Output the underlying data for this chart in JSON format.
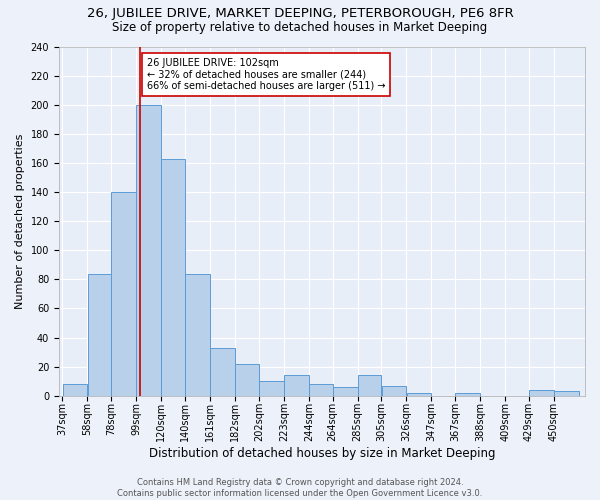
{
  "title": "26, JUBILEE DRIVE, MARKET DEEPING, PETERBOROUGH, PE6 8FR",
  "subtitle": "Size of property relative to detached houses in Market Deeping",
  "xlabel": "Distribution of detached houses by size in Market Deeping",
  "ylabel": "Number of detached properties",
  "bar_labels": [
    "37sqm",
    "58sqm",
    "78sqm",
    "99sqm",
    "120sqm",
    "140sqm",
    "161sqm",
    "182sqm",
    "202sqm",
    "223sqm",
    "244sqm",
    "264sqm",
    "285sqm",
    "305sqm",
    "326sqm",
    "347sqm",
    "367sqm",
    "388sqm",
    "409sqm",
    "429sqm",
    "450sqm"
  ],
  "bar_heights": [
    8,
    84,
    140,
    200,
    163,
    84,
    33,
    22,
    10,
    14,
    8,
    6,
    14,
    7,
    2,
    0,
    2,
    0,
    0,
    4,
    3
  ],
  "bar_edges": [
    37,
    58,
    78,
    99,
    120,
    140,
    161,
    182,
    202,
    223,
    244,
    264,
    285,
    305,
    326,
    347,
    367,
    388,
    409,
    429,
    450,
    471
  ],
  "bar_color": "#b8d0ea",
  "bar_edge_color": "#5b9bd5",
  "red_line_x": 102,
  "annotation_text": "26 JUBILEE DRIVE: 102sqm\n← 32% of detached houses are smaller (244)\n66% of semi-detached houses are larger (511) →",
  "annotation_box_color": "#ffffff",
  "annotation_box_edge": "#cc0000",
  "footer_line1": "Contains HM Land Registry data © Crown copyright and database right 2024.",
  "footer_line2": "Contains public sector information licensed under the Open Government Licence v3.0.",
  "ylim": [
    0,
    240
  ],
  "yticks": [
    0,
    20,
    40,
    60,
    80,
    100,
    120,
    140,
    160,
    180,
    200,
    220,
    240
  ],
  "background_color": "#e8eef8",
  "grid_color": "#ffffff",
  "title_fontsize": 9.5,
  "subtitle_fontsize": 8.5,
  "axis_label_fontsize": 8,
  "tick_fontsize": 7,
  "footer_fontsize": 6
}
